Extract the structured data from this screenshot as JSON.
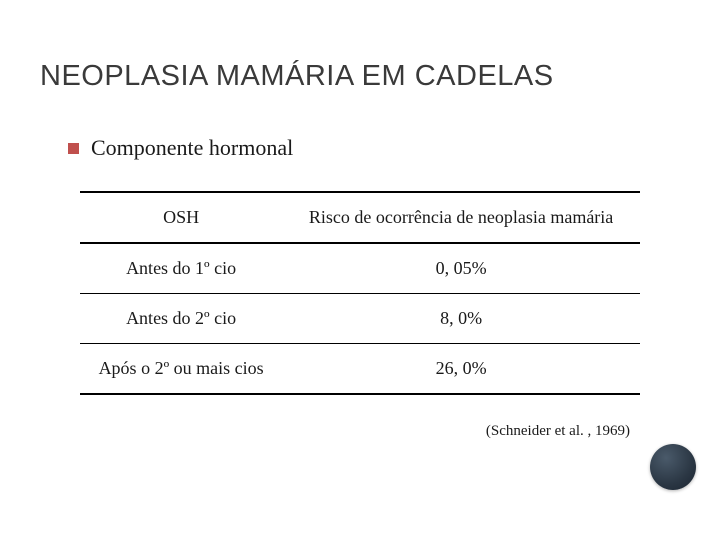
{
  "title": "NEOPLASIA MAMÁRIA EM CADELAS",
  "bullet": {
    "text": "Componente hormonal",
    "color": "#c0504d"
  },
  "table": {
    "columns": [
      "OSH",
      "Risco de ocorrência de neoplasia mamária"
    ],
    "rows": [
      [
        "Antes do 1º cio",
        "0, 05%"
      ],
      [
        "Antes do 2º cio",
        "8, 0%"
      ],
      [
        "Após o 2º ou mais cios",
        "26, 0%"
      ]
    ],
    "border_color": "#000000",
    "font_size": 18
  },
  "citation": "(Schneider et al. , 1969)",
  "corner_circle_color": "#2b3744",
  "background_color": "#ffffff"
}
